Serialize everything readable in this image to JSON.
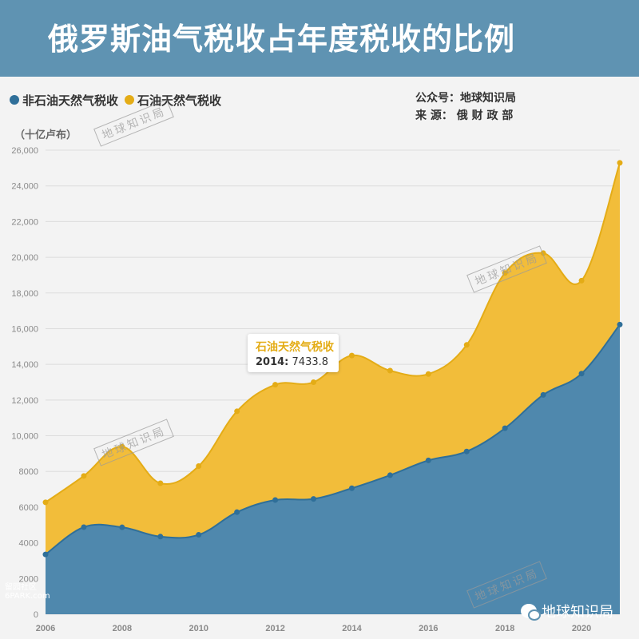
{
  "header": {
    "title": "俄罗斯油气税收占年度税收的比例"
  },
  "legend": {
    "non_oil_gas": "非石油天然气税收",
    "oil_gas": "石油天然气税收"
  },
  "source": {
    "account": "公众号：地球知识局",
    "origin": "来 源： 俄 财 政 部"
  },
  "unit": "（十亿卢布）",
  "watermark": "地球知识局",
  "tooltip": {
    "series": "石油天然气税收",
    "year": "2014:",
    "value": "7433.8"
  },
  "brand": {
    "name": "地球知识局",
    "corner": "留园社区",
    "corner_sub": "6PARK.com"
  },
  "colors": {
    "non_oil_gas": "#4f88ad",
    "oil_gas": "#f2bd3a",
    "header": "#5f93b2"
  },
  "chart_data": {
    "type": "area",
    "stacked": true,
    "x": [
      2006,
      2007,
      2008,
      2009,
      2010,
      2011,
      2012,
      2013,
      2014,
      2015,
      2016,
      2017,
      2018,
      2019,
      2020,
      2021
    ],
    "series": [
      {
        "name": "非石油天然气税收",
        "values": [
          3350,
          4880,
          4870,
          4350,
          4450,
          5720,
          6400,
          6460,
          7060,
          7790,
          8620,
          9120,
          10420,
          12290,
          13480,
          16230
        ]
      },
      {
        "name": "石油天然气税收",
        "values": [
          2920,
          2870,
          4520,
          2990,
          3850,
          5650,
          6460,
          6540,
          7433.8,
          5860,
          4840,
          5970,
          8700,
          7940,
          5210,
          9060
        ]
      }
    ],
    "totals": [
      6270,
      7750,
      9390,
      7340,
      8300,
      11370,
      12860,
      13000,
      14493.8,
      13650,
      13460,
      15090,
      19120,
      20230,
      18690,
      25290
    ],
    "ylim": [
      0,
      26000
    ],
    "yticks": [
      0,
      2000,
      4000,
      6000,
      8000,
      10000,
      12000,
      14000,
      16000,
      18000,
      20000,
      22000,
      24000,
      26000
    ],
    "ytick_labels": [
      "0",
      "2000",
      "4000",
      "6000",
      "8000",
      "10,000",
      "12,000",
      "14,000",
      "16,000",
      "18,000",
      "20,000",
      "22,000",
      "24,000",
      "26,000"
    ],
    "xtick_labels": [
      "2006",
      "2008",
      "2010",
      "2012",
      "2014",
      "2016",
      "2018",
      "2020"
    ],
    "grid": true,
    "legend": "top-left"
  }
}
